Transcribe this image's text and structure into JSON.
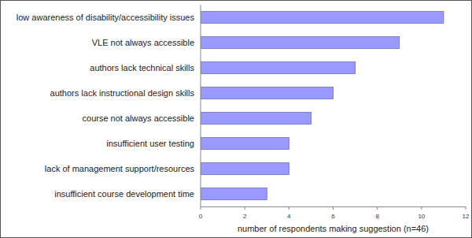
{
  "chart_data": {
    "type": "bar",
    "orientation": "horizontal",
    "categories": [
      "low awareness of disability/accessibility issues",
      "VLE not always accessible",
      "authors lack technical skills",
      "authors lack instructional design skills",
      "course not always accessible",
      "insufficient user testing",
      "lack of management support/resources",
      "insufficient course development time"
    ],
    "values": [
      11,
      9,
      7,
      6,
      5,
      4,
      4,
      3
    ],
    "color": "#9999ff",
    "x_label": "number of respondents making suggestion (n=46)",
    "xlim": [
      0,
      12
    ],
    "xticks": [
      0,
      2,
      4,
      6,
      8,
      10,
      12
    ],
    "grid": false
  }
}
